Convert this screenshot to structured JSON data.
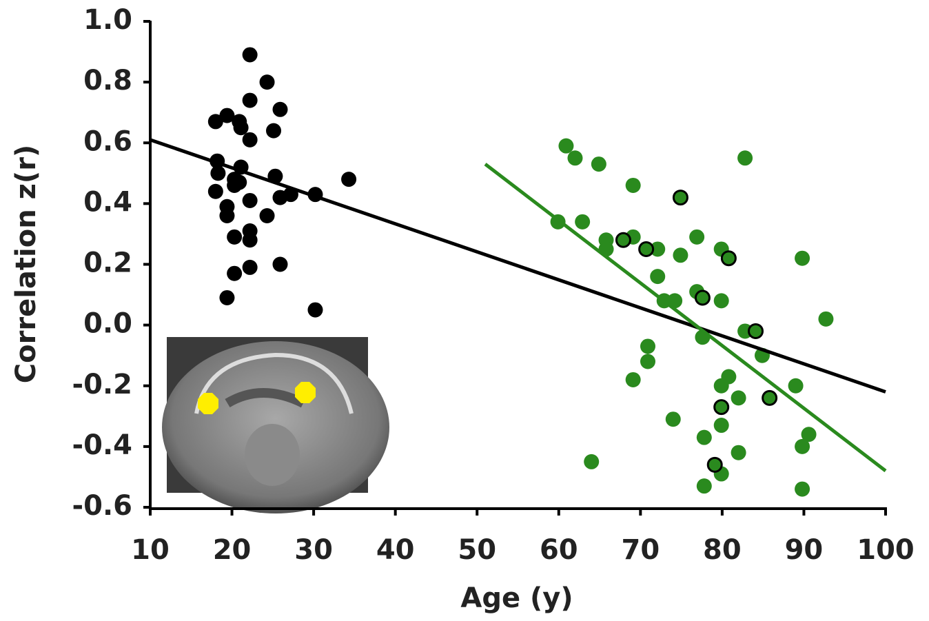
{
  "chart_data": {
    "type": "scatter",
    "xlabel": "Age (y)",
    "ylabel": "Correlation z(r)",
    "xlim": [
      10,
      100
    ],
    "xticks": [
      10,
      20,
      30,
      40,
      50,
      60,
      70,
      80,
      90,
      100
    ],
    "ylim": [
      -0.6,
      1.0
    ],
    "yticks": [
      {
        "value": 1,
        "label": "1.0"
      },
      0.8,
      0.6,
      0.4,
      0.2,
      {
        "value": 0,
        "label": "0.0"
      },
      -0.2,
      -0.4,
      -0.6
    ],
    "grid": false,
    "series": [
      {
        "color": "#000000",
        "x": [
          22.2,
          24.3,
          22.2,
          25.9,
          18.0,
          19.4,
          20.9,
          21.1,
          25.1,
          22.2,
          18.2,
          21.1,
          18.3,
          20.3,
          25.3,
          20.9,
          20.3,
          18.0,
          27.2,
          25.9,
          30.2,
          34.3,
          22.2,
          19.4,
          19.4,
          24.3,
          22.2,
          22.2,
          20.3,
          25.9,
          22.2,
          20.3,
          19.4,
          30.2
        ],
        "values": [
          0.89,
          0.8,
          0.74,
          0.71,
          0.67,
          0.69,
          0.67,
          0.65,
          0.64,
          0.61,
          0.54,
          0.52,
          0.5,
          0.48,
          0.49,
          0.47,
          0.46,
          0.44,
          0.43,
          0.42,
          0.43,
          0.48,
          0.41,
          0.39,
          0.36,
          0.36,
          0.31,
          0.28,
          0.29,
          0.2,
          0.19,
          0.17,
          0.09,
          0.05
        ]
      },
      {
        "color": "#2a8a1e",
        "x": [
          60.9,
          62.0,
          64.9,
          82.8,
          69.1,
          59.9,
          62.9,
          65.8,
          69.1,
          65.8,
          72.1,
          76.9,
          74.9,
          79.9,
          89.8,
          72.1,
          76.9,
          72.9,
          74.2,
          79.9,
          92.7,
          82.8,
          77.6,
          70.9,
          70.9,
          84.9,
          69.1,
          80.8,
          79.9,
          82.0,
          89.0,
          74.0,
          79.9,
          77.8,
          90.6,
          89.8,
          82.0,
          64.0,
          79.9,
          77.8,
          89.8
        ],
        "values": [
          0.59,
          0.55,
          0.53,
          0.55,
          0.46,
          0.34,
          0.34,
          0.28,
          0.29,
          0.25,
          0.25,
          0.29,
          0.23,
          0.25,
          0.22,
          0.16,
          0.11,
          0.08,
          0.08,
          0.08,
          0.02,
          -0.02,
          -0.04,
          -0.07,
          -0.12,
          -0.1,
          -0.18,
          -0.17,
          -0.2,
          -0.24,
          -0.2,
          -0.31,
          -0.33,
          -0.37,
          -0.36,
          -0.4,
          -0.42,
          -0.45,
          -0.49,
          -0.53,
          -0.54
        ]
      },
      {
        "color": "#2a8a1e",
        "edgecolor": "#000000",
        "x": [
          74.9,
          67.9,
          70.7,
          80.8,
          77.6,
          84.1,
          85.8,
          79.9,
          79.1
        ],
        "values": [
          0.42,
          0.28,
          0.25,
          0.22,
          0.09,
          -0.02,
          -0.24,
          -0.27,
          -0.46
        ]
      }
    ],
    "lines": [
      {
        "color": "#000000",
        "x": [
          10,
          100
        ],
        "values": [
          0.61,
          -0.22
        ]
      },
      {
        "color": "#2a8a1e",
        "x": [
          51,
          100
        ],
        "values": [
          0.53,
          -0.48
        ]
      }
    ]
  }
}
